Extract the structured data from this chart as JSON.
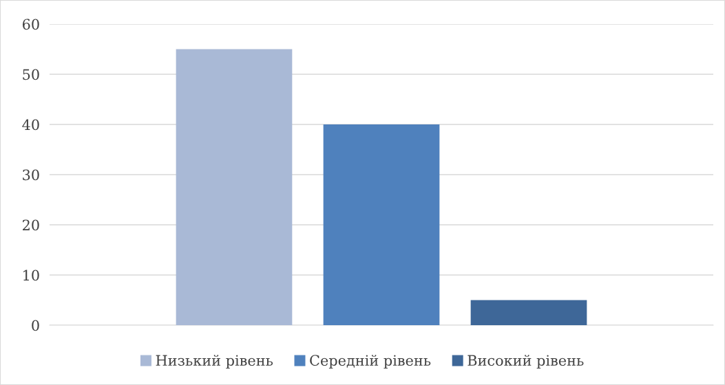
{
  "chart_data": {
    "type": "bar",
    "categories": [
      null
    ],
    "series": [
      {
        "name": "Низький рівень",
        "color": "#a9b9d6",
        "values": [
          55
        ]
      },
      {
        "name": "Середній рівень",
        "color": "#4f81bd",
        "values": [
          40
        ]
      },
      {
        "name": "Високий рівень",
        "color": "#3e6798",
        "values": [
          5
        ]
      }
    ],
    "ylim": [
      0,
      60
    ],
    "yticks": [
      0,
      10,
      20,
      30,
      40,
      50,
      60
    ],
    "grid": "y",
    "legend": "bottom"
  }
}
